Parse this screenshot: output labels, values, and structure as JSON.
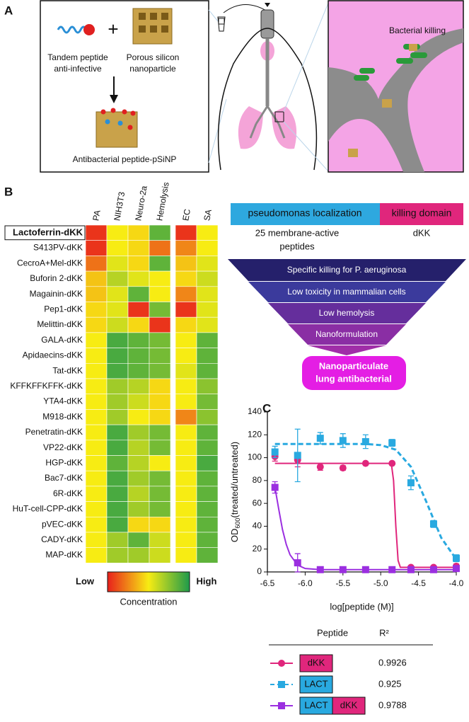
{
  "panel_a": {
    "label": "A",
    "plus": "+",
    "peptide_label": [
      "Tandem peptide",
      "anti-infective"
    ],
    "particle_label": [
      "Porous silicon",
      "nanoparticle"
    ],
    "product_label": "Antibacterial peptide-pSiNP",
    "inset_label": "Bacterial killing"
  },
  "panel_b": {
    "label": "B",
    "construct": {
      "localization": "pseudomonas localization",
      "killing": "killing domain",
      "localization_note": [
        "25 membrane-active",
        "peptides"
      ],
      "killing_note": "dKK"
    },
    "funnel": [
      "Specific killing for P. aeruginosa",
      "Low toxicity in mammalian cells",
      "Low hemolysis",
      "Nanoformulation"
    ],
    "result": [
      "Nanoparticulate",
      "lung antibacterial"
    ]
  },
  "chart_data": [
    {
      "type": "heatmap",
      "columns": [
        "PA",
        "NIH3T3",
        "Neuro-2a",
        "Hemolysis",
        "EC",
        "SA"
      ],
      "rows": [
        "Lactoferrin-dKK",
        "S413PV-dKK",
        "CecroA+Mel-dKK",
        "Buforin 2-dKK",
        "Magainin-dKK",
        "Pep1-dKK",
        "Melittin-dKK",
        "GALA-dKK",
        "Apidaecins-dKK",
        "Tat-dKK",
        "KFFKFFKFFK-dKK",
        "YTA4-dKK",
        "M918-dKK",
        "Penetratin-dKK",
        "VP22-dKK",
        "HGP-dKK",
        "Bac7-dKK",
        "6R-dKK",
        "HuT-cell-CPP-dKK",
        "pVEC-dKK",
        "CADY-dKK",
        "MAP-dKK"
      ],
      "values": [
        [
          0.05,
          0.5,
          0.45,
          0.85,
          0.05,
          0.5
        ],
        [
          0.05,
          0.5,
          0.45,
          0.2,
          0.25,
          0.5
        ],
        [
          0.2,
          0.55,
          0.45,
          0.85,
          0.4,
          0.55
        ],
        [
          0.4,
          0.65,
          0.55,
          0.5,
          0.45,
          0.6
        ],
        [
          0.4,
          0.55,
          0.85,
          0.5,
          0.25,
          0.55
        ],
        [
          0.45,
          0.55,
          0.05,
          0.8,
          0.05,
          0.55
        ],
        [
          0.45,
          0.6,
          0.45,
          0.05,
          0.45,
          0.55
        ],
        [
          0.5,
          0.9,
          0.85,
          0.8,
          0.5,
          0.85
        ],
        [
          0.5,
          0.9,
          0.85,
          0.8,
          0.5,
          0.85
        ],
        [
          0.5,
          0.9,
          0.85,
          0.8,
          0.55,
          0.85
        ],
        [
          0.5,
          0.7,
          0.65,
          0.45,
          0.5,
          0.75
        ],
        [
          0.5,
          0.7,
          0.6,
          0.45,
          0.5,
          0.8
        ],
        [
          0.5,
          0.7,
          0.5,
          0.45,
          0.25,
          0.75
        ],
        [
          0.5,
          0.9,
          0.7,
          0.8,
          0.5,
          0.85
        ],
        [
          0.5,
          0.9,
          0.65,
          0.8,
          0.5,
          0.85
        ],
        [
          0.5,
          0.85,
          0.65,
          0.5,
          0.5,
          0.9
        ],
        [
          0.5,
          0.9,
          0.7,
          0.8,
          0.5,
          0.85
        ],
        [
          0.5,
          0.9,
          0.65,
          0.8,
          0.5,
          0.85
        ],
        [
          0.5,
          0.9,
          0.7,
          0.8,
          0.5,
          0.85
        ],
        [
          0.5,
          0.9,
          0.45,
          0.45,
          0.5,
          0.85
        ],
        [
          0.5,
          0.7,
          0.85,
          0.6,
          0.5,
          0.85
        ],
        [
          0.5,
          0.7,
          0.7,
          0.6,
          0.5,
          0.85
        ]
      ],
      "boxed_row": 0,
      "zlim": [
        0,
        1
      ],
      "colorscale": [
        "#e8201c",
        "#f7ec13",
        "#1e9a4b"
      ],
      "colorbar": {
        "low": "Low",
        "high": "High",
        "title": "Concentration"
      }
    },
    {
      "type": "line",
      "label": "C",
      "xlabel": "log[peptide (M)]",
      "ylabel": {
        "main": "OD",
        "sub": "600",
        "rest": "(treated/untreated)"
      },
      "xlim": [
        -6.5,
        -4.0
      ],
      "xticks": [
        -6.5,
        {
          "value": -6,
          "label": "-6.0"
        },
        -5.5,
        {
          "value": -5,
          "label": "-5.0"
        },
        -4.5,
        {
          "value": -4,
          "label": "-4.0"
        }
      ],
      "ylim": [
        0,
        140
      ],
      "yticks": [
        0,
        20,
        40,
        60,
        80,
        100,
        120,
        140
      ],
      "x": [
        -6.4,
        -6.1,
        -5.8,
        -5.5,
        -5.2,
        -4.85,
        -4.6,
        -4.3,
        -4.0
      ],
      "legend_header": [
        "Peptide",
        "R²"
      ],
      "series": [
        {
          "name": [
            "dKK"
          ],
          "label_colors": [
            "#e0267c"
          ],
          "color": "#e0267c",
          "marker": "circle",
          "dash": false,
          "values": [
            101,
            98,
            92,
            91,
            95,
            95,
            4,
            4,
            5
          ],
          "errors": [
            4,
            6,
            3,
            2,
            1,
            1,
            1,
            1,
            2
          ],
          "r2": 0.9926,
          "fit": {
            "x": [
              -6.4,
              -4.86,
              -4.83,
              -4.8,
              -4.77,
              -4.74,
              -4.0
            ],
            "values": [
              95,
              95,
              80,
              40,
              10,
              4,
              4
            ]
          }
        },
        {
          "name": [
            "LACT"
          ],
          "label_colors": [
            "#29a9e0"
          ],
          "color": "#29a9e0",
          "marker": "square",
          "dash": true,
          "values": [
            105,
            102,
            117,
            115,
            114,
            113,
            78,
            42,
            12
          ],
          "errors": [
            5,
            23,
            5,
            6,
            6,
            3,
            6,
            3,
            3
          ],
          "r2": 0.925,
          "fit": {
            "x": [
              -6.4,
              -5.2,
              -5.0,
              -4.8,
              -4.6,
              -4.4,
              -4.2,
              -4.0
            ],
            "values": [
              112,
              112,
              111,
              107,
              92,
              62,
              30,
              11
            ]
          }
        },
        {
          "name": [
            "LACT",
            "dKK"
          ],
          "label_colors": [
            "#29a9e0",
            "#e0267c"
          ],
          "color": "#9b2fe0",
          "marker": "square",
          "dash": false,
          "values": [
            74,
            8,
            2,
            2,
            2,
            2,
            2,
            2,
            3
          ],
          "errors": [
            5,
            8,
            1,
            1,
            1,
            1,
            1,
            1,
            1
          ],
          "r2": 0.9788,
          "fit": {
            "x": [
              -6.4,
              -6.35,
              -6.3,
              -6.25,
              -6.2,
              -6.1,
              -6.0,
              -5.8,
              -4.0
            ],
            "values": [
              74,
              55,
              37,
              24,
              15,
              6,
              3,
              2,
              2
            ]
          }
        }
      ]
    }
  ]
}
